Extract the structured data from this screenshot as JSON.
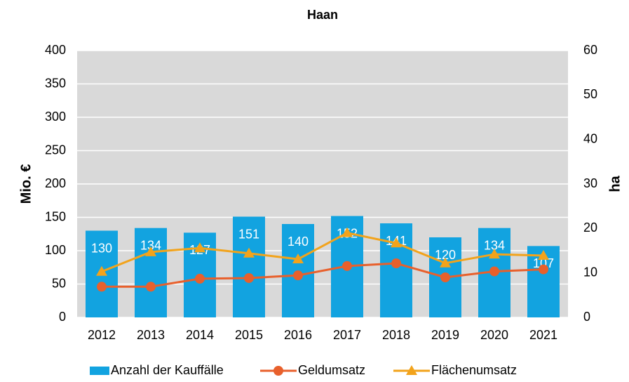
{
  "chart_data": {
    "type": "bar_line",
    "title": "Haan",
    "ylabel": "Mio. €",
    "y2label": "ha",
    "categories": [
      "2012",
      "2013",
      "2014",
      "2015",
      "2016",
      "2017",
      "2018",
      "2019",
      "2020",
      "2021"
    ],
    "ylim": [
      0,
      400
    ],
    "yticks": [
      0,
      50,
      100,
      150,
      200,
      250,
      300,
      350,
      400
    ],
    "y2lim": [
      0,
      60
    ],
    "y2ticks": [
      0,
      10,
      20,
      30,
      40,
      50,
      60
    ],
    "grid": true,
    "legend": "bottom",
    "series": [
      {
        "name": "Anzahl der Kauffälle",
        "type": "bar",
        "color": "#12a3e0",
        "values": [
          130,
          134,
          127,
          151,
          140,
          152,
          141,
          120,
          134,
          107
        ]
      },
      {
        "name": "Geldumsatz",
        "type": "line",
        "marker": "circle",
        "color": "#e8602c",
        "values": [
          46,
          46,
          58,
          59,
          63,
          77,
          81,
          60,
          69,
          72
        ]
      },
      {
        "name": "Flächenumsatz",
        "type": "line",
        "marker": "triangle",
        "axis": "y2",
        "color": "#f2a31b",
        "values": [
          10.3,
          14.7,
          15.6,
          14.4,
          13.1,
          19.0,
          16.7,
          12.2,
          14.2,
          13.9
        ]
      }
    ]
  }
}
